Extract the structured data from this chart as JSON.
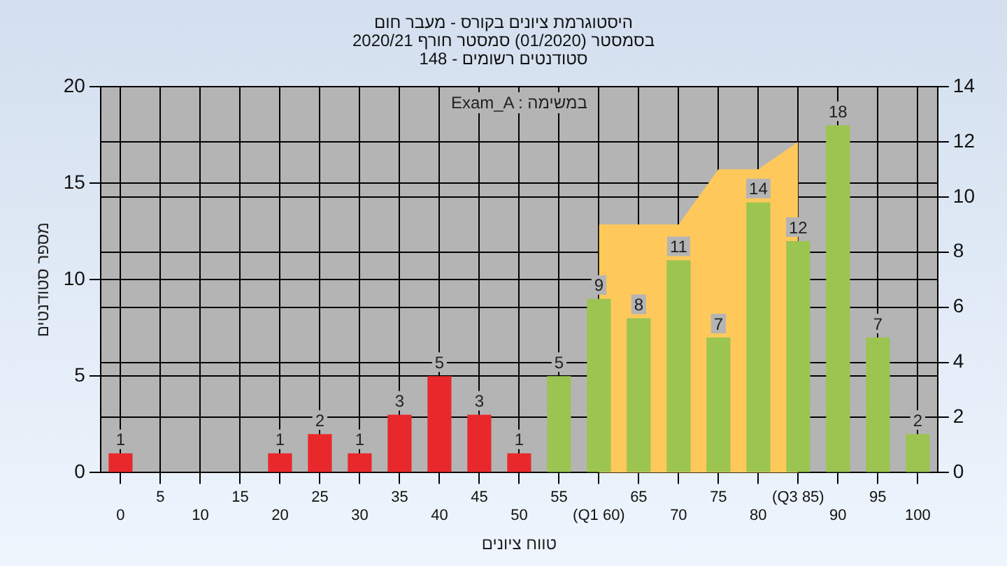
{
  "chart_data": {
    "type": "bar",
    "title": "היסטוגרמת ציונים בקורס - מעבר חום",
    "subtitle": "בסמסטר (01/2020) סמסטר חורף 2020/21\nסטודנטים רשומים - 148",
    "xlabel": "טווח ציונים",
    "ylabel": "מספר סטודנטים",
    "annotations": [
      "Exam_A : במשימה"
    ],
    "categories": [
      "0",
      "5",
      "10",
      "15",
      "20",
      "25",
      "30",
      "35",
      "40",
      "45",
      "50",
      "55",
      "(Q1 60)",
      "65",
      "70",
      "75",
      "80",
      "(Q3 85)",
      "90",
      "95",
      "100"
    ],
    "series": [
      {
        "values": [
          1,
          0,
          0,
          0,
          1,
          2,
          1,
          3,
          5,
          3,
          1,
          5,
          9,
          8,
          11,
          7,
          14,
          12,
          18,
          7,
          2
        ],
        "value_labels": [
          "1",
          null,
          null,
          null,
          "1",
          "2",
          "1",
          "3",
          "5",
          "3",
          "1",
          "5",
          "9",
          "8",
          "11",
          "7",
          "14",
          "12",
          "18",
          "7",
          "2"
        ],
        "colors": [
          "#e8282a",
          "#e8282a",
          "#e8282a",
          "#e8282a",
          "#e8282a",
          "#e8282a",
          "#e8282a",
          "#e8282a",
          "#e8282a",
          "#e8282a",
          "#e8282a",
          "#9cc450",
          "#9cc450",
          "#9cc450",
          "#9cc450",
          "#9cc450",
          "#9cc450",
          "#9cc450",
          "#9cc450",
          "#9cc450",
          "#9cc450"
        ]
      },
      {
        "type": "area",
        "axis": "y2",
        "color": "#ffc85a",
        "values": [
          null,
          null,
          null,
          null,
          null,
          null,
          null,
          null,
          null,
          null,
          null,
          null,
          9,
          9,
          9,
          11,
          11,
          12,
          null,
          null,
          null
        ]
      }
    ],
    "ylim": [
      0,
      20
    ],
    "yticks": [
      0,
      5,
      10,
      15,
      20
    ],
    "y2lim": [
      0,
      14
    ],
    "y2ticks": [
      0,
      2,
      4,
      6,
      8,
      10,
      12,
      14
    ],
    "grid": true,
    "legend": false
  }
}
